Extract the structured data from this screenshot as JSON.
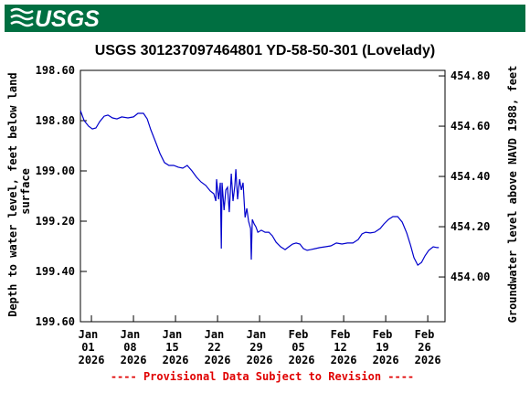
{
  "logo": "USGS",
  "chart_data": {
    "type": "line",
    "title": "USGS 301237097464801 YD-58-50-301 (Lovelady)",
    "ylabel": "Depth to water level, feet below land surface",
    "y2label": "Groundwater level above NAVD 1988, feet",
    "footer": "---- Provisional Data Subject to Revision ----",
    "color": "#0000cc",
    "x": [
      "2025-12-30T04:00",
      "2025-12-30T19:00",
      "2025-12-31T13:00",
      "2026-01-01T04:00",
      "2026-01-01T18:00",
      "2026-01-02T09:00",
      "2026-01-03T03:00",
      "2026-01-03T18:00",
      "2026-01-04T12:00",
      "2026-01-05T06:00",
      "2026-01-06T01:00",
      "2026-01-07T02:00",
      "2026-01-08T00:00",
      "2026-01-08T18:00",
      "2026-01-09T16:00",
      "2026-01-10T07:00",
      "2026-01-10T21:00",
      "2026-01-11T16:00",
      "2026-01-12T10:00",
      "2026-01-13T04:00",
      "2026-01-13T22:00",
      "2026-01-14T17:00",
      "2026-01-15T11:00",
      "2026-01-16T05:00",
      "2026-01-16T23:00",
      "2026-01-17T18:00",
      "2026-01-18T12:00",
      "2026-01-19T06:00",
      "2026-01-20T01:00",
      "2026-01-20T19:00",
      "2026-01-21T09:00",
      "2026-01-21T17:00",
      "2026-01-21T20:00",
      "2026-01-22T04:00",
      "2026-01-22T11:00",
      "2026-01-22T15:00",
      "2026-01-22T18:00",
      "2026-01-23T02:00",
      "2026-01-23T09:00",
      "2026-01-23T16:00",
      "2026-01-23T23:00",
      "2026-01-24T07:00",
      "2026-01-24T14:00",
      "2026-01-24T21:00",
      "2026-01-25T01:00",
      "2026-01-25T08:00",
      "2026-01-25T16:00",
      "2026-01-25T23:00",
      "2026-01-26T06:00",
      "2026-01-26T14:00",
      "2026-01-26T21:00",
      "2026-01-27T04:00",
      "2026-01-27T12:00",
      "2026-01-27T15:00",
      "2026-01-27T19:00",
      "2026-01-28T02:00",
      "2026-01-28T09:00",
      "2026-01-28T17:00",
      "2026-01-29T07:00",
      "2026-01-29T22:00",
      "2026-01-30T13:00",
      "2026-01-31T03:00",
      "2026-01-31T18:00",
      "2026-02-01T12:00",
      "2026-02-02T06:00",
      "2026-02-02T21:00",
      "2026-02-03T12:00",
      "2026-02-04T02:00",
      "2026-02-04T17:00",
      "2026-02-05T07:00",
      "2026-02-05T22:00",
      "2026-02-06T13:00",
      "2026-02-07T07:00",
      "2026-02-08T01:00",
      "2026-02-08T23:00",
      "2026-02-09T21:00",
      "2026-02-10T19:00",
      "2026-02-11T17:00",
      "2026-02-12T15:00",
      "2026-02-13T13:00",
      "2026-02-14T10:00",
      "2026-02-15T01:00",
      "2026-02-15T16:00",
      "2026-02-16T10:00",
      "2026-02-17T04:00",
      "2026-02-18T02:00",
      "2026-02-18T17:00",
      "2026-02-19T11:00",
      "2026-02-20T05:00",
      "2026-02-21T00:00",
      "2026-02-21T18:00",
      "2026-02-22T12:00",
      "2026-02-23T03:00",
      "2026-02-23T17:00",
      "2026-02-24T08:00",
      "2026-02-24T23:00",
      "2026-02-25T13:00",
      "2026-02-26T04:00",
      "2026-02-26T22:00",
      "2026-02-27T13:00",
      "2026-02-27T20:00"
    ],
    "values": [
      198.76,
      198.8,
      198.822,
      198.833,
      198.829,
      198.804,
      198.782,
      198.778,
      198.789,
      198.793,
      198.785,
      198.789,
      198.785,
      198.771,
      198.771,
      198.793,
      198.836,
      198.884,
      198.931,
      198.967,
      198.978,
      198.978,
      198.985,
      198.989,
      198.978,
      199.0,
      199.025,
      199.044,
      199.058,
      199.08,
      199.091,
      199.12,
      199.033,
      199.113,
      199.047,
      199.309,
      199.047,
      199.156,
      199.076,
      199.065,
      199.164,
      199.011,
      199.12,
      199.058,
      198.993,
      199.113,
      199.033,
      199.076,
      199.047,
      199.185,
      199.149,
      199.2,
      199.229,
      199.353,
      199.193,
      199.211,
      199.222,
      199.244,
      199.236,
      199.244,
      199.244,
      199.258,
      199.284,
      199.302,
      199.313,
      199.302,
      199.291,
      199.287,
      199.291,
      199.309,
      199.316,
      199.313,
      199.309,
      199.305,
      199.302,
      199.298,
      199.287,
      199.291,
      199.287,
      199.287,
      199.273,
      199.251,
      199.244,
      199.247,
      199.244,
      199.229,
      199.211,
      199.193,
      199.182,
      199.182,
      199.204,
      199.247,
      199.295,
      199.345,
      199.375,
      199.364,
      199.338,
      199.316,
      199.302,
      199.305,
      199.305
    ],
    "xlim": [
      "2025-12-30T04:00",
      "2026-02-28T21:00"
    ],
    "xticks": [
      {
        "value": "2026-01-01T00:00",
        "label": "Jan 01 2026"
      },
      {
        "value": "2026-01-08T00:00",
        "label": "Jan 08 2026"
      },
      {
        "value": "2026-01-15T00:00",
        "label": "Jan 15 2026"
      },
      {
        "value": "2026-01-22T00:00",
        "label": "Jan 22 2026"
      },
      {
        "value": "2026-01-29T00:00",
        "label": "Jan 29 2026"
      },
      {
        "value": "2026-02-05T00:00",
        "label": "Feb 05 2026"
      },
      {
        "value": "2026-02-12T00:00",
        "label": "Feb 12 2026"
      },
      {
        "value": "2026-02-19T00:00",
        "label": "Feb 19 2026"
      },
      {
        "value": "2026-02-26T00:00",
        "label": "Feb 26 2026"
      }
    ],
    "ylim": [
      199.6,
      198.6
    ],
    "yticks": [
      {
        "value": 198.6,
        "label": "198.60"
      },
      {
        "value": 198.8,
        "label": "198.80"
      },
      {
        "value": 199.0,
        "label": "199.00"
      },
      {
        "value": 199.2,
        "label": "199.20"
      },
      {
        "value": 199.4,
        "label": "199.40"
      },
      {
        "value": 199.6,
        "label": "199.60"
      }
    ],
    "y2lim": [
      453.822,
      454.822
    ],
    "y2ticks": [
      {
        "value": 454.8,
        "label": "454.80"
      },
      {
        "value": 454.6,
        "label": "454.60"
      },
      {
        "value": 454.4,
        "label": "454.40"
      },
      {
        "value": 454.2,
        "label": "454.20"
      },
      {
        "value": 454.0,
        "label": "454.00"
      }
    ]
  }
}
